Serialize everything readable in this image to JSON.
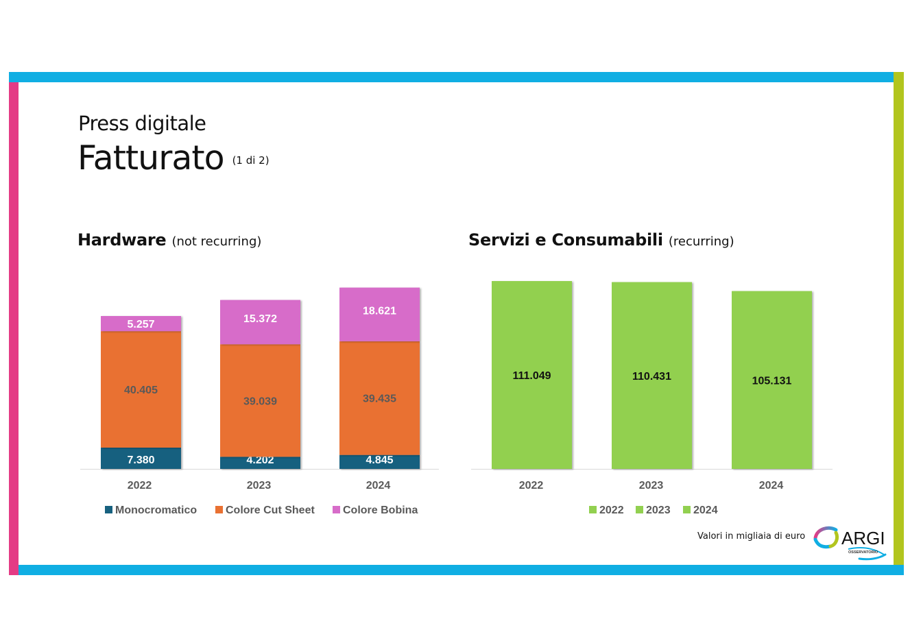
{
  "page": {
    "subtitle": "Press digitale",
    "title": "Fatturato",
    "page_indicator": "(1 di 2)",
    "footnote": "Valori in migliaia di euro",
    "logo_text": "ARGI",
    "logo_subtext": "OSSERVATORIO",
    "frame_colors": {
      "top": "#10aee3",
      "right": "#b2c51e",
      "bottom": "#10aee3",
      "left": "#e43b85"
    }
  },
  "chart_data": [
    {
      "type": "bar",
      "stacked": true,
      "title": "Hardware",
      "title_note": "(not recurring)",
      "categories": [
        "2022",
        "2023",
        "2024"
      ],
      "series": [
        {
          "name": "Monocromatico",
          "color": "#17617f",
          "values": [
            7380,
            4202,
            4845
          ],
          "labels": [
            "7.380",
            "4.202",
            "4.845"
          ],
          "label_color": "#ffffff"
        },
        {
          "name": "Colore Cut Sheet",
          "color": "#e97132",
          "values": [
            40405,
            39039,
            39435
          ],
          "labels": [
            "40.405",
            "39.039",
            "39.435"
          ],
          "label_color": "#595959"
        },
        {
          "name": "Colore Bobina",
          "color": "#d76cc9",
          "values": [
            5257,
            15372,
            18621
          ],
          "labels": [
            "5.257",
            "15.372",
            "18.621"
          ],
          "label_color": "#ffffff"
        }
      ],
      "xlabel": "",
      "ylabel": "",
      "grid": false,
      "legend": "bottom"
    },
    {
      "type": "bar",
      "stacked": false,
      "title": "Servizi e Consumabili",
      "title_note": "(recurring)",
      "categories": [
        "2022",
        "2023",
        "2024"
      ],
      "series": [
        {
          "name": "Servizi e Consumabili",
          "color": "#92d050",
          "values": [
            111049,
            110431,
            105131
          ],
          "labels": [
            "111.049",
            "110.431",
            "105.131"
          ],
          "label_color": "#111111"
        }
      ],
      "legend_entries": [
        "2022",
        "2023",
        "2024"
      ],
      "xlabel": "",
      "ylabel": "",
      "grid": false,
      "legend": "bottom"
    }
  ]
}
